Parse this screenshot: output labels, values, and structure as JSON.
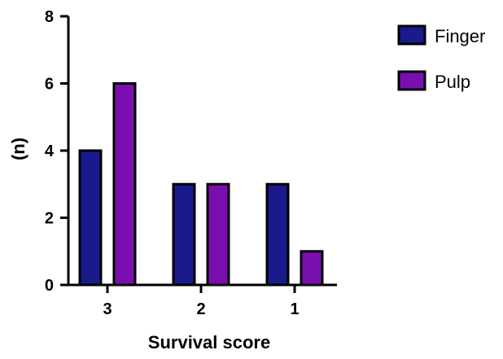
{
  "chart_data": {
    "type": "bar",
    "categories": [
      "3",
      "2",
      "1"
    ],
    "series": [
      {
        "name": "Finger",
        "values": [
          4,
          3,
          3
        ],
        "color": "#1a1a8c"
      },
      {
        "name": "Pulp",
        "values": [
          6,
          3,
          1
        ],
        "color": "#7a0fb0"
      }
    ],
    "xlabel": "Survival score",
    "ylabel": "(n)",
    "ylim": [
      0,
      8
    ],
    "yticks": [
      "0",
      "2",
      "4",
      "6",
      "8"
    ],
    "grid": false,
    "legend_position": "top-right",
    "bar_outline_color": "#000000"
  }
}
